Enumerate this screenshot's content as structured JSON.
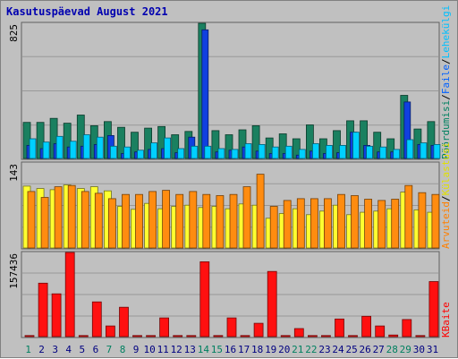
{
  "title": "Kasutuspäevad August 2021",
  "chart_data": [
    {
      "type": "bar",
      "panel": "top",
      "ylabel_left": "825",
      "legend_right": [
        {
          "text": "Pöördumisi",
          "color": "#008060"
        },
        {
          "text": "Faile",
          "color": "#0060ff"
        },
        {
          "text": "Lehekülgi",
          "color": "#00c0ff"
        }
      ],
      "ylim": [
        0,
        825
      ],
      "categories": [
        "1",
        "2",
        "3",
        "4",
        "5",
        "6",
        "7",
        "8",
        "9",
        "10",
        "11",
        "12",
        "13",
        "14",
        "15",
        "16",
        "17",
        "18",
        "19",
        "20",
        "21",
        "22",
        "23",
        "24",
        "25",
        "26",
        "27",
        "28",
        "29",
        "30",
        "31"
      ],
      "weekend_days": [
        "1",
        "7",
        "8",
        "14",
        "15",
        "21",
        "22",
        "28",
        "29"
      ],
      "series": [
        {
          "name": "Pöördumisi",
          "color": "#1a8060",
          "values": [
            220,
            220,
            245,
            215,
            265,
            200,
            225,
            190,
            160,
            185,
            195,
            145,
            165,
            825,
            170,
            145,
            175,
            200,
            125,
            150,
            120,
            205,
            120,
            170,
            230,
            230,
            160,
            120,
            385,
            180,
            225
          ]
        },
        {
          "name": "Faile",
          "color": "#1040e0",
          "values": [
            80,
            60,
            90,
            70,
            75,
            85,
            140,
            30,
            40,
            55,
            60,
            35,
            130,
            785,
            40,
            50,
            70,
            45,
            30,
            30,
            20,
            45,
            30,
            35,
            160,
            80,
            40,
            40,
            345,
            85,
            80
          ]
        },
        {
          "name": "Lehekülgi",
          "color": "#00d0ff",
          "values": [
            120,
            100,
            135,
            105,
            145,
            130,
            75,
            70,
            50,
            95,
            125,
            60,
            75,
            75,
            60,
            55,
            90,
            85,
            70,
            75,
            55,
            90,
            80,
            80,
            160,
            75,
            70,
            55,
            115,
            95,
            85
          ]
        }
      ]
    },
    {
      "type": "bar",
      "panel": "middle",
      "ylabel_left": "143",
      "legend_right": [
        {
          "text": "Arvuteid",
          "color": "#ff8000"
        },
        {
          "text": "Külastusi",
          "color": "#e0e000"
        }
      ],
      "ylim": [
        0,
        143
      ],
      "series": [
        {
          "name": "Külastusi",
          "color": "#ffff30",
          "values": [
            104,
            100,
            98,
            106,
            100,
            103,
            96,
            70,
            65,
            75,
            66,
            70,
            72,
            68,
            70,
            66,
            74,
            72,
            50,
            58,
            66,
            56,
            62,
            72,
            56,
            60,
            62,
            66,
            94,
            64,
            60
          ]
        },
        {
          "name": "Arvuteid",
          "color": "#ff8c10",
          "values": [
            95,
            85,
            103,
            105,
            95,
            92,
            83,
            90,
            90,
            95,
            97,
            90,
            95,
            90,
            88,
            90,
            103,
            124,
            70,
            80,
            83,
            83,
            83,
            90,
            88,
            82,
            80,
            82,
            105,
            93,
            90
          ]
        }
      ]
    },
    {
      "type": "bar",
      "panel": "bottom",
      "ylabel_left": "157436",
      "legend_right": [
        {
          "text": "KBaite",
          "color": "#ff0000"
        }
      ],
      "ylim": [
        0,
        157436
      ],
      "series": [
        {
          "name": "KBaite",
          "color": "#ff1010",
          "values": [
            2000,
            100000,
            80000,
            157436,
            2000,
            65000,
            20000,
            55000,
            2000,
            2000,
            35000,
            2000,
            2000,
            140000,
            2000,
            35000,
            2000,
            25000,
            122000,
            2000,
            15000,
            2000,
            2000,
            33000,
            2000,
            38000,
            20000,
            3000,
            32000,
            2000,
            103000
          ]
        }
      ]
    }
  ]
}
